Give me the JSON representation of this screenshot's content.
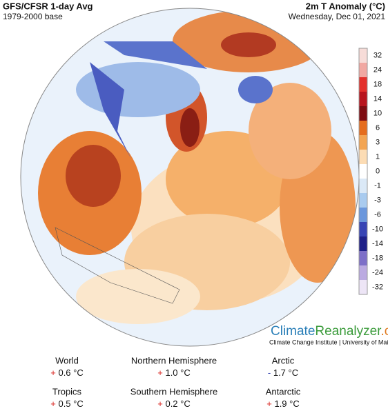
{
  "header": {
    "title": "GFS/CFSR 1-day Avg",
    "subtitle": "1979-2000 base",
    "variable": "2m T Anomaly (°C)",
    "date": "Wednesday, Dec 01, 2021"
  },
  "colorbar": {
    "ticks": [
      32,
      24,
      18,
      14,
      10,
      6,
      3,
      1,
      0,
      -1,
      -3,
      -6,
      -10,
      -14,
      -18,
      -24,
      -32
    ],
    "colors": [
      "#f7dcd8",
      "#f1a8a2",
      "#e3302c",
      "#b8141e",
      "#7e0c12",
      "#e56d1e",
      "#f3a553",
      "#fcdcb4",
      "#ffffff",
      "#dbe9f7",
      "#a9cbef",
      "#6b97dc",
      "#3744b4",
      "#1e2088",
      "#7d6fc8",
      "#bbaae1",
      "#ede5f6"
    ]
  },
  "branding": {
    "part1": "Climate",
    "part2": "Reanalyzer",
    "part3": ".org",
    "credit": "Climate Change Institute | University of Maine"
  },
  "stats": [
    {
      "label": "World",
      "sign": "+",
      "value": "0.6 °C"
    },
    {
      "label": "Northern Hemisphere",
      "sign": "+",
      "value": "1.0 °C"
    },
    {
      "label": "Arctic",
      "sign": "-",
      "value": "1.7 °C"
    },
    {
      "label": "Tropics",
      "sign": "+",
      "value": "0.5 °C"
    },
    {
      "label": "Southern Hemisphere",
      "sign": "+",
      "value": "0.2 °C"
    },
    {
      "label": "Antarctic",
      "sign": "+",
      "value": "1.9 °C"
    }
  ]
}
